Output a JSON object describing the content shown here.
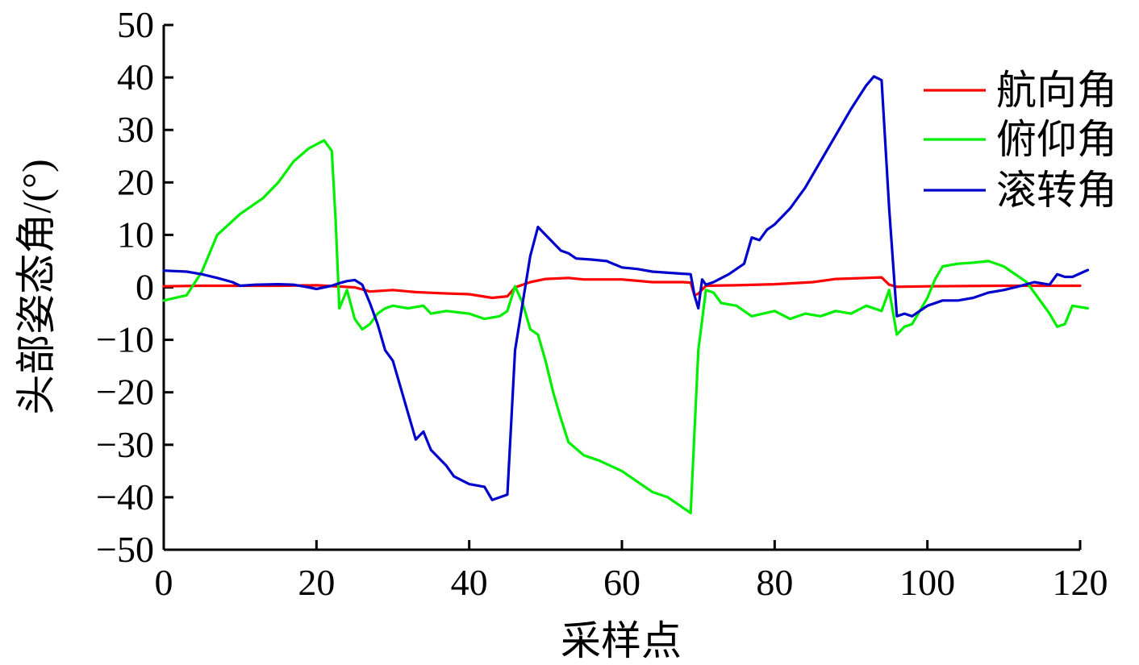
{
  "chart_data": {
    "type": "line",
    "title": "",
    "xlabel": "采样点",
    "ylabel": "头部姿态角/(°)",
    "xlim": [
      0,
      120
    ],
    "ylim": [
      -50,
      50
    ],
    "xticks": [
      0,
      20,
      40,
      60,
      80,
      100,
      120
    ],
    "yticks": [
      50,
      40,
      30,
      20,
      10,
      0,
      -10,
      -20,
      -30,
      -40,
      -50
    ],
    "grid": false,
    "legend_position": "top-right",
    "series": [
      {
        "name": "航向角",
        "color": "#ff0000",
        "points": [
          [
            0,
            0.2
          ],
          [
            5,
            0.3
          ],
          [
            10,
            0.3
          ],
          [
            15,
            0.3
          ],
          [
            20,
            0.4
          ],
          [
            25,
            0.0
          ],
          [
            27,
            -0.8
          ],
          [
            30,
            -0.5
          ],
          [
            33,
            -0.9
          ],
          [
            36,
            -1.1
          ],
          [
            40,
            -1.3
          ],
          [
            43,
            -2.0
          ],
          [
            45,
            -1.7
          ],
          [
            46,
            0.0
          ],
          [
            48,
            1.0
          ],
          [
            50,
            1.6
          ],
          [
            53,
            1.8
          ],
          [
            55,
            1.5
          ],
          [
            60,
            1.5
          ],
          [
            64,
            1.0
          ],
          [
            68,
            1.0
          ],
          [
            69,
            0.9
          ],
          [
            69.5,
            -1.5
          ],
          [
            70,
            -1.2
          ],
          [
            71,
            0.3
          ],
          [
            75,
            0.4
          ],
          [
            80,
            0.6
          ],
          [
            85,
            1.0
          ],
          [
            88,
            1.6
          ],
          [
            92,
            1.8
          ],
          [
            94,
            1.9
          ],
          [
            95,
            0.5
          ],
          [
            96,
            0.1
          ],
          [
            100,
            0.2
          ],
          [
            110,
            0.3
          ],
          [
            120,
            0.3
          ]
        ]
      },
      {
        "name": "俯仰角",
        "color": "#00ee00",
        "points": [
          [
            0,
            -2.5
          ],
          [
            3,
            -1.5
          ],
          [
            5,
            3
          ],
          [
            7,
            10
          ],
          [
            10,
            14
          ],
          [
            13,
            17
          ],
          [
            15,
            20
          ],
          [
            17,
            24
          ],
          [
            19,
            26.5
          ],
          [
            21,
            28
          ],
          [
            22,
            26
          ],
          [
            22.5,
            13
          ],
          [
            23,
            -4
          ],
          [
            24,
            -0.5
          ],
          [
            25,
            -6
          ],
          [
            26,
            -8
          ],
          [
            27,
            -7
          ],
          [
            28,
            -5
          ],
          [
            29,
            -4
          ],
          [
            30,
            -3.5
          ],
          [
            32,
            -4
          ],
          [
            34,
            -3.5
          ],
          [
            35,
            -5
          ],
          [
            37,
            -4.5
          ],
          [
            40,
            -5
          ],
          [
            42,
            -6
          ],
          [
            44,
            -5.5
          ],
          [
            45,
            -4.5
          ],
          [
            46,
            0.2
          ],
          [
            47,
            -3
          ],
          [
            48,
            -8
          ],
          [
            49,
            -9
          ],
          [
            50,
            -14
          ],
          [
            51,
            -20
          ],
          [
            52,
            -25
          ],
          [
            53,
            -29.5
          ],
          [
            55,
            -32
          ],
          [
            57,
            -33
          ],
          [
            60,
            -35
          ],
          [
            62,
            -37
          ],
          [
            64,
            -39
          ],
          [
            66,
            -40
          ],
          [
            68,
            -42
          ],
          [
            69,
            -43
          ],
          [
            70,
            -12
          ],
          [
            71,
            -0.5
          ],
          [
            72,
            -1
          ],
          [
            73,
            -3
          ],
          [
            75,
            -3.5
          ],
          [
            77,
            -5.5
          ],
          [
            80,
            -4.5
          ],
          [
            82,
            -6
          ],
          [
            84,
            -5
          ],
          [
            86,
            -5.5
          ],
          [
            88,
            -4.5
          ],
          [
            90,
            -5
          ],
          [
            92,
            -3.5
          ],
          [
            94,
            -4.5
          ],
          [
            95,
            -0.5
          ],
          [
            96,
            -9
          ],
          [
            97,
            -7.5
          ],
          [
            98,
            -7
          ],
          [
            100,
            -2
          ],
          [
            101,
            1.5
          ],
          [
            102,
            4
          ],
          [
            104,
            4.5
          ],
          [
            106,
            4.7
          ],
          [
            108,
            5
          ],
          [
            110,
            4
          ],
          [
            112,
            2
          ],
          [
            113,
            1
          ],
          [
            115,
            -3
          ],
          [
            116,
            -5
          ],
          [
            117,
            -7.5
          ],
          [
            118,
            -7
          ],
          [
            119,
            -3.5
          ],
          [
            121,
            -4
          ]
        ]
      },
      {
        "name": "滚转角",
        "color": "#0000cc",
        "points": [
          [
            0,
            3.2
          ],
          [
            3,
            3
          ],
          [
            5,
            2.5
          ],
          [
            7,
            1.8
          ],
          [
            9,
            1
          ],
          [
            10,
            0.3
          ],
          [
            12,
            0.5
          ],
          [
            15,
            0.6
          ],
          [
            17,
            0.5
          ],
          [
            19,
            0
          ],
          [
            20,
            -0.3
          ],
          [
            22,
            0.3
          ],
          [
            23,
            0.8
          ],
          [
            24,
            1.2
          ],
          [
            25,
            1.4
          ],
          [
            26,
            0.5
          ],
          [
            27,
            -3
          ],
          [
            28,
            -7
          ],
          [
            29,
            -12
          ],
          [
            30,
            -14
          ],
          [
            31,
            -19
          ],
          [
            32,
            -24
          ],
          [
            33,
            -29
          ],
          [
            34,
            -27.5
          ],
          [
            35,
            -31
          ],
          [
            37,
            -34
          ],
          [
            38,
            -36
          ],
          [
            40,
            -37.5
          ],
          [
            42,
            -38
          ],
          [
            43,
            -40.5
          ],
          [
            45,
            -39.5
          ],
          [
            46,
            -12
          ],
          [
            47,
            -3
          ],
          [
            48,
            6
          ],
          [
            49,
            11.5
          ],
          [
            50,
            10
          ],
          [
            52,
            7
          ],
          [
            53,
            6.5
          ],
          [
            54,
            5.5
          ],
          [
            56,
            5.3
          ],
          [
            58,
            5
          ],
          [
            60,
            3.8
          ],
          [
            62,
            3.5
          ],
          [
            64,
            3
          ],
          [
            68,
            2.6
          ],
          [
            69,
            2.5
          ],
          [
            69.5,
            -1.5
          ],
          [
            70,
            -4
          ],
          [
            70.5,
            1.5
          ],
          [
            71,
            0.5
          ],
          [
            72,
            1
          ],
          [
            74,
            2.5
          ],
          [
            76,
            4.5
          ],
          [
            77,
            9.5
          ],
          [
            78,
            9
          ],
          [
            79,
            11
          ],
          [
            80,
            12
          ],
          [
            82,
            15
          ],
          [
            84,
            19
          ],
          [
            86,
            24
          ],
          [
            88,
            29
          ],
          [
            90,
            34
          ],
          [
            92,
            38.5
          ],
          [
            93,
            40.2
          ],
          [
            94,
            39.5
          ],
          [
            95,
            15
          ],
          [
            96,
            -5.5
          ],
          [
            97,
            -5
          ],
          [
            98,
            -5.5
          ],
          [
            100,
            -3.5
          ],
          [
            102,
            -2.5
          ],
          [
            104,
            -2.5
          ],
          [
            106,
            -2
          ],
          [
            108,
            -1
          ],
          [
            110,
            -0.5
          ],
          [
            112,
            0.2
          ],
          [
            114,
            1
          ],
          [
            116,
            0.5
          ],
          [
            117,
            2.5
          ],
          [
            118,
            2
          ],
          [
            119,
            2
          ],
          [
            121,
            3.3
          ]
        ]
      }
    ]
  }
}
